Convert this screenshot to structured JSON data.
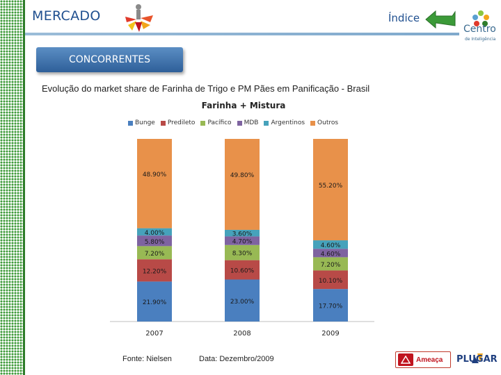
{
  "header": {
    "section_title": "MERCADO",
    "index_label": "Índice",
    "brand_name": "Centro",
    "brand_sub": "de Inteligência"
  },
  "competitors_label": "CONCORRENTES",
  "subtitle": "Evolução do market share de Farinha de Trigo e PM Pães em Panificação - Brasil",
  "footer": {
    "source": "Fonte: Nielsen",
    "date": "Data: Dezembro/2009",
    "threat_label": "Ameaça",
    "partner_name": "PLUGAR"
  },
  "colors": {
    "Bunge": "#4a7fbf",
    "Predileto": "#b84a47",
    "Pacifico": "#98b954",
    "MDB": "#7e63a0",
    "Argentinos": "#46a2bb",
    "Outros": "#e8914a"
  },
  "chart_data": {
    "type": "bar",
    "stacked": true,
    "title": "Farinha + Mistura",
    "categories": [
      "2007",
      "2008",
      "2009"
    ],
    "series": [
      {
        "name": "Bunge",
        "values": [
          21.9,
          23.0,
          17.7
        ],
        "labels": [
          "21.90%",
          "23.00%",
          "17.70%"
        ]
      },
      {
        "name": "Predileto",
        "values": [
          12.2,
          10.6,
          10.1
        ],
        "labels": [
          "12.20%",
          "10.60%",
          "10.10%"
        ]
      },
      {
        "name": "Pacífico",
        "values": [
          7.2,
          8.3,
          7.2
        ],
        "labels": [
          "7.20%",
          "8.30%",
          "7.20%"
        ]
      },
      {
        "name": "MDB",
        "values": [
          5.8,
          4.7,
          4.6
        ],
        "labels": [
          "5.80%",
          "4.70%",
          "4.60%"
        ]
      },
      {
        "name": "Argentinos",
        "values": [
          4.0,
          3.6,
          4.6
        ],
        "labels": [
          "4.00%",
          "3.60%",
          "4.60%"
        ]
      },
      {
        "name": "Outros",
        "values": [
          48.9,
          49.8,
          55.2
        ],
        "labels": [
          "48.90%",
          "49.80%",
          "55.20%"
        ]
      }
    ],
    "ylim": [
      0,
      100
    ],
    "grid": false,
    "legend_position": "top"
  }
}
